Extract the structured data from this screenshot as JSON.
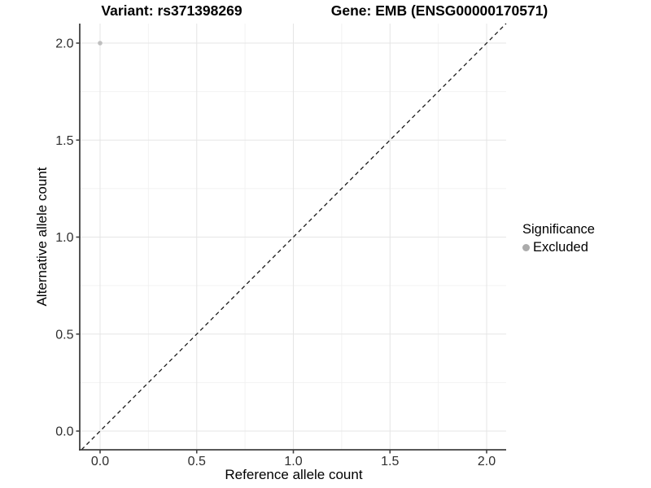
{
  "titles": {
    "variant": "Variant: rs371398269",
    "gene": "Gene: EMB (ENSG00000170571)"
  },
  "chart_data": {
    "type": "scatter",
    "title": "Variant: rs371398269  /  Gene: EMB (ENSG00000170571)",
    "xlabel": "Reference allele count",
    "ylabel": "Alternative allele count",
    "xlim": [
      -0.105,
      2.105
    ],
    "ylim": [
      -0.105,
      2.105
    ],
    "x_ticks": [
      0.0,
      0.5,
      1.0,
      1.5,
      2.0
    ],
    "y_ticks": [
      0.0,
      0.5,
      1.0,
      1.5,
      2.0
    ],
    "x_tick_labels": [
      "0.0",
      "0.5",
      "1.0",
      "1.5",
      "2.0"
    ],
    "y_tick_labels": [
      "0.0",
      "0.5",
      "1.0",
      "1.5",
      "2.0"
    ],
    "x_minor_ticks": [
      0.25,
      0.75,
      1.25,
      1.75
    ],
    "y_minor_ticks": [
      0.25,
      0.75,
      1.25,
      1.75
    ],
    "grid": true,
    "legend_position": "right",
    "series": [
      {
        "name": "Excluded",
        "marker": "circle",
        "color": "#bfbfbf",
        "points": [
          {
            "x": 0.0,
            "y": 2.0
          }
        ]
      }
    ],
    "reference_line": {
      "type": "abline",
      "slope": 1,
      "intercept": 0,
      "style": "dashed",
      "color": "#1a1a1a"
    }
  },
  "legend": {
    "title": "Significance",
    "items": [
      {
        "label": "Excluded",
        "color": "#ababab",
        "marker": "circle"
      }
    ]
  },
  "colors": {
    "background": "#ffffff",
    "grid_major": "#e6e6e6",
    "grid_minor": "#f2f2f2",
    "axis_line": "#404040",
    "tick_mark": "#404040",
    "tick_label": "#2e2e2e",
    "title": "#000000"
  }
}
